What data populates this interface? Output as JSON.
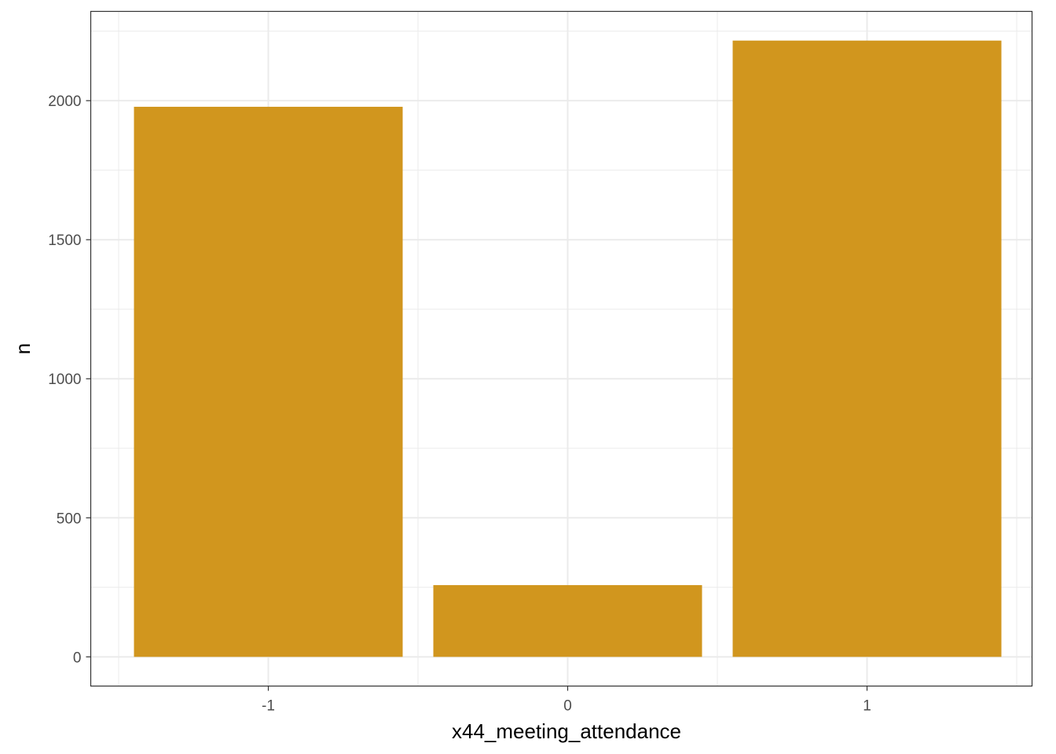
{
  "chart_data": {
    "type": "bar",
    "categories": [
      "-1",
      "0",
      "1"
    ],
    "values": [
      1978,
      258,
      2216
    ],
    "xlabel": "x44_meeting_attendance",
    "ylabel": "n",
    "ylim": [
      -105,
      2321
    ],
    "yticks": [
      0,
      500,
      1000,
      1500,
      2000
    ],
    "ytick_labels": [
      "0",
      "500",
      "1000",
      "1500",
      "2000"
    ],
    "grid": true,
    "bar_color": "#d1961e"
  }
}
